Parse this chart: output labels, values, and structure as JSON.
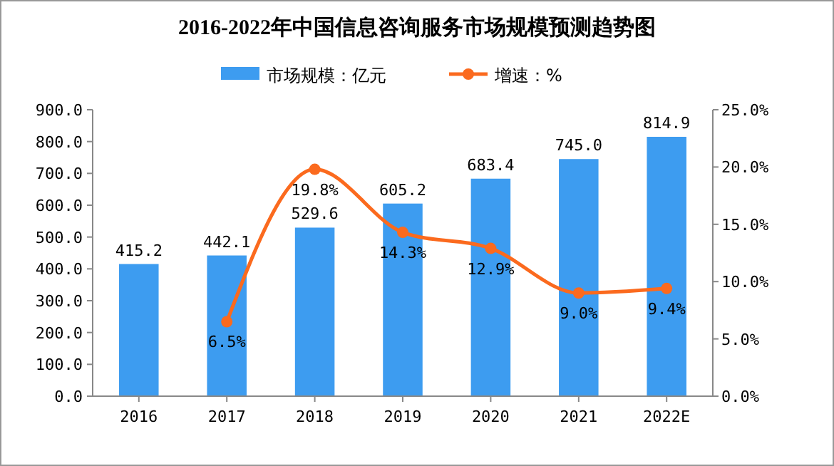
{
  "chart_data": {
    "type": "bar",
    "title": "2016-2022年中国信息咨询服务市场规模预测趋势图",
    "categories": [
      "2016",
      "2017",
      "2018",
      "2019",
      "2020",
      "2021",
      "2022E"
    ],
    "series": [
      {
        "name": "市场规模：亿元",
        "color": "#3d9cf0",
        "values": [
          415.2,
          442.1,
          529.6,
          605.2,
          683.4,
          745.0,
          814.9
        ],
        "value_labels": [
          "415.2",
          "442.1",
          "529.6",
          "605.2",
          "683.4",
          "745.0",
          "814.9"
        ]
      },
      {
        "name": "增速：%",
        "type": "line",
        "axis": "y2",
        "color": "#fb6a1e",
        "marker": "circle",
        "values": [
          null,
          6.5,
          19.8,
          14.3,
          12.9,
          9.0,
          9.4
        ],
        "value_labels": [
          null,
          "6.5%",
          "19.8%",
          "14.3%",
          "12.9%",
          "9.0%",
          "9.4%"
        ]
      }
    ],
    "ylim": [
      0,
      900
    ],
    "yticks": [
      {
        "value": 0,
        "label": "0.0"
      },
      {
        "value": 100,
        "label": "100.0"
      },
      {
        "value": 200,
        "label": "200.0"
      },
      {
        "value": 300,
        "label": "300.0"
      },
      {
        "value": 400,
        "label": "400.0"
      },
      {
        "value": 500,
        "label": "500.0"
      },
      {
        "value": 600,
        "label": "600.0"
      },
      {
        "value": 700,
        "label": "700.0"
      },
      {
        "value": 800,
        "label": "800.0"
      },
      {
        "value": 900,
        "label": "900.0"
      }
    ],
    "y2lim": [
      0,
      25
    ],
    "y2ticks": [
      {
        "value": 0,
        "label": "0.0%"
      },
      {
        "value": 5,
        "label": "5.0%"
      },
      {
        "value": 10,
        "label": "10.0%"
      },
      {
        "value": 15,
        "label": "15.0%"
      },
      {
        "value": 20,
        "label": "20.0%"
      },
      {
        "value": 25,
        "label": "25.0%"
      }
    ],
    "legend": "top",
    "grid": false
  }
}
